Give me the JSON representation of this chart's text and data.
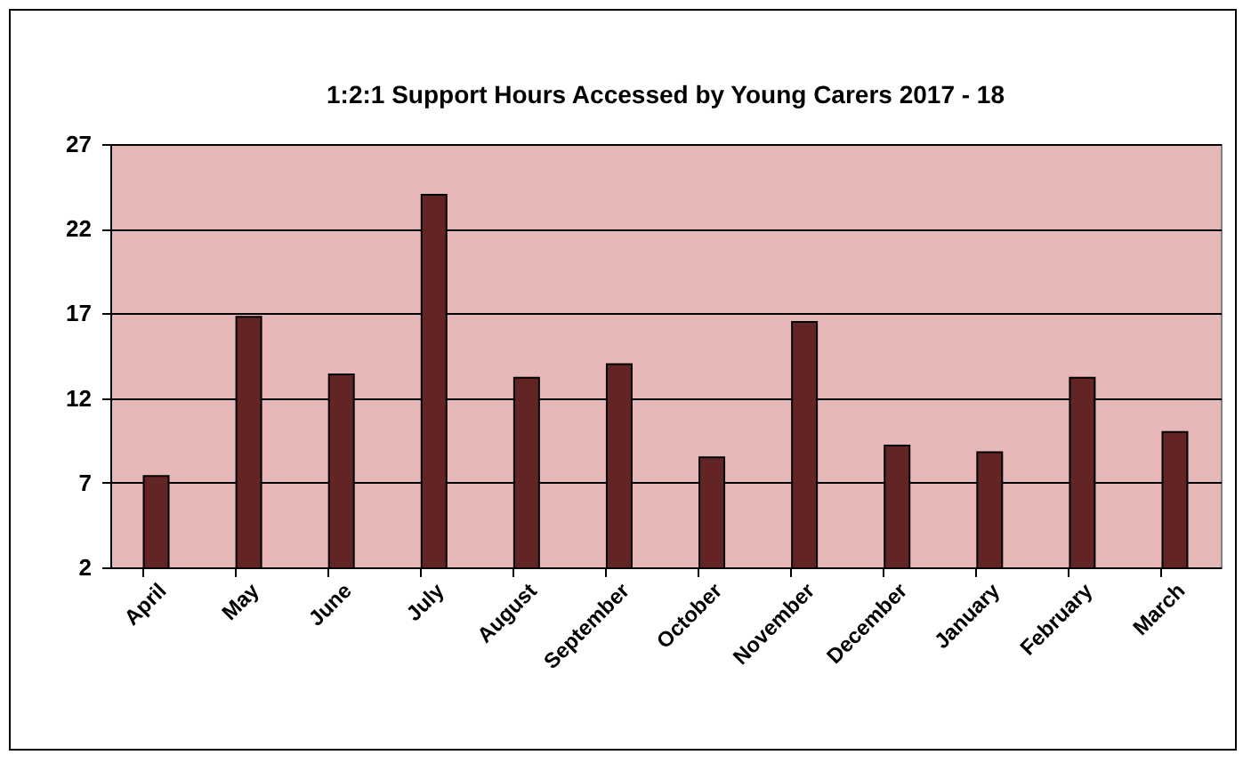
{
  "chart_data": {
    "type": "bar",
    "title": "1:2:1 Support Hours Accessed  by Young Carers 2017 - 18",
    "categories": [
      "April",
      "May",
      "June",
      "July",
      "August",
      "September",
      "October",
      "November",
      "December",
      "January",
      "February",
      "March"
    ],
    "values": [
      7.4,
      16.8,
      13.4,
      24.0,
      13.2,
      14.0,
      8.5,
      16.5,
      9.2,
      8.8,
      13.2,
      10.0
    ],
    "color": "#632523",
    "ylim": [
      2,
      27
    ],
    "yticks": [
      2,
      7,
      12,
      17,
      22,
      27
    ],
    "grid": "y"
  }
}
